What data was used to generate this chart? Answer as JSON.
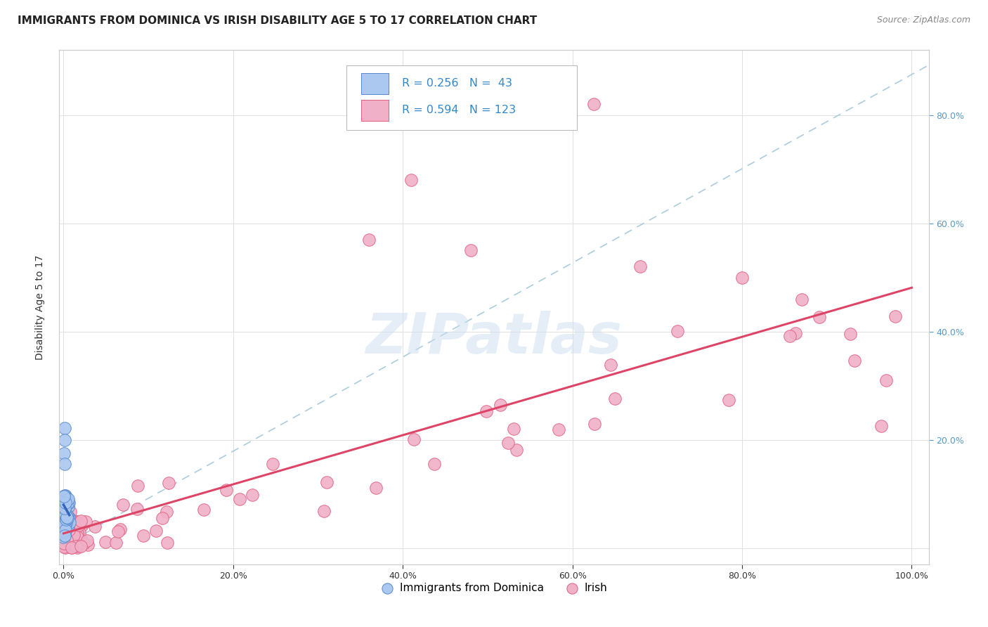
{
  "title": "IMMIGRANTS FROM DOMINICA VS IRISH DISABILITY AGE 5 TO 17 CORRELATION CHART",
  "source": "Source: ZipAtlas.com",
  "ylabel": "Disability Age 5 to 17",
  "xlim": [
    -0.005,
    1.02
  ],
  "ylim": [
    -0.03,
    0.92
  ],
  "xticks": [
    0.0,
    0.2,
    0.4,
    0.6,
    0.8,
    1.0
  ],
  "yticks": [
    0.0,
    0.2,
    0.4,
    0.6,
    0.8
  ],
  "right_yticks": [
    0.2,
    0.4,
    0.6,
    0.8
  ],
  "right_yticklabels": [
    "20.0%",
    "40.0%",
    "60.0%",
    "80.0%"
  ],
  "series1_name": "Immigrants from Dominica",
  "series1_R": 0.256,
  "series1_N": 43,
  "series1_color": "#aac8f0",
  "series1_edge_color": "#5588cc",
  "series1_line_color": "#3366bb",
  "series2_name": "Irish",
  "series2_R": 0.594,
  "series2_N": 123,
  "series2_color": "#f0b0c8",
  "series2_edge_color": "#e06080",
  "series2_line_color": "#dd4466",
  "dash_color": "#aaccdd",
  "watermark": "ZIPatlas",
  "legend_color": "#3388cc",
  "title_fontsize": 11,
  "tick_fontsize": 9,
  "right_tick_color": "#5599cc"
}
